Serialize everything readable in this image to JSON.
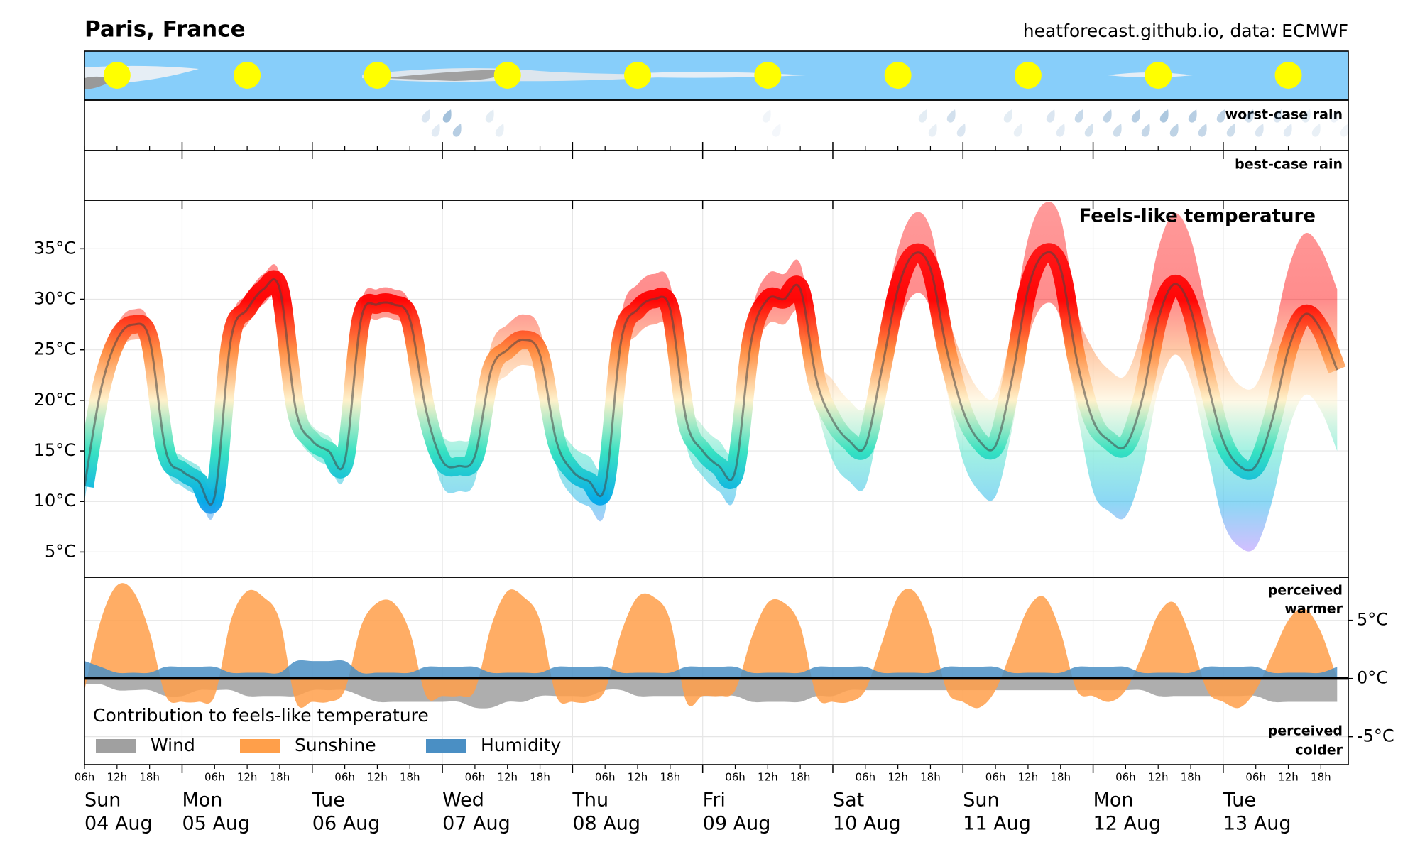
{
  "chart_data": {
    "type": "area",
    "title": "Paris, France",
    "source": "heatforecast.github.io, data: ECMWF",
    "worst_rain_label": "worst-case rain",
    "best_rain_label": "best-case rain",
    "days": [
      {
        "weekday": "Sun",
        "date": "04 Aug"
      },
      {
        "weekday": "Mon",
        "date": "05 Aug"
      },
      {
        "weekday": "Tue",
        "date": "06 Aug"
      },
      {
        "weekday": "Wed",
        "date": "07 Aug"
      },
      {
        "weekday": "Thu",
        "date": "08 Aug"
      },
      {
        "weekday": "Fri",
        "date": "09 Aug"
      },
      {
        "weekday": "Sat",
        "date": "10 Aug"
      },
      {
        "weekday": "Sun",
        "date": "11 Aug"
      },
      {
        "weekday": "Mon",
        "date": "12 Aug"
      },
      {
        "weekday": "Tue",
        "date": "13 Aug"
      }
    ],
    "hour_ticks": [
      "06h",
      "12h",
      "18h"
    ],
    "temperature": {
      "title": "Feels-like temperature",
      "ylim": [
        2.5,
        39.8
      ],
      "yticks": [
        {
          "value": 5,
          "label": "5°C"
        },
        {
          "value": 10,
          "label": "10°C"
        },
        {
          "value": 15,
          "label": "15°C"
        },
        {
          "value": 20,
          "label": "20°C"
        },
        {
          "value": 25,
          "label": "25°C"
        },
        {
          "value": 30,
          "label": "30°C"
        },
        {
          "value": 35,
          "label": "35°C"
        }
      ],
      "grid": true,
      "values": [
        null,
        null,
        11.5,
        21,
        26,
        27.5,
        26,
        15,
        13,
        12,
        10.5,
        26,
        29,
        31,
        31,
        19,
        16,
        15,
        14,
        28,
        29.5,
        29.5,
        28,
        19,
        14,
        13.5,
        14.5,
        23,
        25,
        26,
        24.5,
        16,
        13,
        12,
        11.5,
        26,
        29,
        30,
        29,
        18,
        15,
        13.5,
        13,
        26,
        30,
        30,
        31,
        22,
        18,
        16,
        15.5,
        23,
        31,
        34.5,
        33,
        25,
        19,
        16,
        15.5,
        22,
        31,
        34.5,
        33,
        24,
        18,
        16,
        15.5,
        20,
        28,
        31.5,
        29,
        22,
        16,
        13.5,
        13.5,
        18,
        25,
        28.5,
        27,
        23
      ],
      "low": [
        null,
        null,
        10,
        19.5,
        24.5,
        26,
        24.5,
        13.5,
        11.5,
        10.5,
        9,
        24.5,
        27.5,
        29.5,
        29.5,
        17.5,
        14.5,
        13.5,
        12.5,
        26.5,
        28,
        28,
        26.5,
        17.5,
        11.5,
        11,
        12,
        20.5,
        22.5,
        23.5,
        22,
        13.5,
        10.5,
        9.5,
        9,
        23.5,
        26.5,
        27.5,
        26.5,
        15.5,
        12.5,
        11,
        10.5,
        23.5,
        27.5,
        27.5,
        28.5,
        19.5,
        14,
        12,
        11.5,
        19,
        27,
        30.5,
        29,
        21,
        14,
        11,
        10.5,
        17,
        26,
        29.5,
        28,
        19,
        11,
        9,
        8.5,
        13,
        21,
        24.5,
        22,
        15,
        8,
        5.5,
        5.5,
        10,
        17,
        20.5,
        19,
        15
      ],
      "high": [
        null,
        null,
        13,
        22.5,
        27.5,
        29,
        27.5,
        16.5,
        14.5,
        13.5,
        12,
        27.5,
        30.5,
        32.5,
        32.5,
        20.5,
        17.5,
        16.5,
        15.5,
        29.5,
        31,
        31,
        29.5,
        20.5,
        16.5,
        16,
        17,
        25.5,
        27.5,
        28.5,
        27,
        18.5,
        15.5,
        14.5,
        14,
        28.5,
        31.5,
        32.5,
        31.5,
        20.5,
        17.5,
        16,
        15.5,
        28.5,
        32.5,
        32.5,
        33.5,
        24.5,
        22,
        20,
        19.5,
        27,
        35,
        38.5,
        37,
        29,
        24,
        21,
        20.5,
        27,
        36,
        39.5,
        38,
        29,
        25,
        23,
        22.5,
        27,
        35,
        38.5,
        36,
        29,
        24,
        21.5,
        21.5,
        26,
        33,
        36.5,
        35,
        31
      ]
    },
    "contribution": {
      "legend_title": "Contribution to feels-like temperature",
      "warmer_label": [
        "perceived",
        "warmer"
      ],
      "colder_label": [
        "perceived",
        "colder"
      ],
      "ylim": [
        -7.4,
        8.7
      ],
      "yticks": [
        {
          "value": -5,
          "label": "-5°C"
        },
        {
          "value": 0,
          "label": "0°C"
        },
        {
          "value": 5,
          "label": "5°C"
        }
      ],
      "series": [
        {
          "name": "Wind",
          "color": "#a0a0a0",
          "values": [
            null,
            null,
            -0.5,
            -0.5,
            -1,
            -1,
            -1,
            -1.5,
            -1.5,
            -1,
            -1,
            -1,
            -1.5,
            -1.5,
            -1.5,
            -1.5,
            -1,
            -1,
            -1,
            -1.5,
            -2,
            -2,
            -2,
            -2,
            -2,
            -2,
            -2.5,
            -2.5,
            -2,
            -2,
            -1.5,
            -1.5,
            -1.5,
            -1.5,
            -1,
            -1,
            -1.5,
            -1.5,
            -1.5,
            -1.5,
            -1.5,
            -1.5,
            -1.5,
            -2,
            -2,
            -2,
            -2,
            -1.5,
            -1.5,
            -1,
            -1,
            -1,
            -1,
            -1,
            -1,
            -1,
            -1,
            -1,
            -1,
            -1,
            -1,
            -1,
            -1,
            -1,
            -1,
            -1,
            -1,
            -1,
            -1.5,
            -1.5,
            -1.5,
            -1.5,
            -1.5,
            -1.5,
            -1.5,
            -2,
            -2,
            -2,
            -2,
            -2
          ]
        },
        {
          "name": "Sunshine",
          "color": "#ff9f4a",
          "values": [
            null,
            null,
            -1,
            5,
            8,
            7.5,
            4,
            -1.5,
            -2,
            -2,
            -1.5,
            5,
            7.5,
            7,
            5,
            -2,
            -2,
            -2,
            -1,
            4.5,
            6.5,
            6.5,
            4,
            -1.5,
            -1.5,
            -1.5,
            -1,
            4.5,
            7.5,
            7,
            5,
            -1.5,
            -2,
            -2,
            -1,
            4,
            7,
            7,
            5,
            -2,
            -1.5,
            -1.5,
            -1,
            3.5,
            6.5,
            6.5,
            4.5,
            -1.5,
            -2,
            -2,
            -1,
            3,
            7,
            7.5,
            4.5,
            -1,
            -2,
            -2.5,
            -1,
            2.5,
            6,
            7,
            4,
            -1,
            -1.5,
            -2,
            -1,
            2,
            5.5,
            6.5,
            3.5,
            -1,
            -2,
            -2.5,
            -1,
            2,
            5,
            6,
            4,
            0
          ]
        },
        {
          "name": "Humidity",
          "color": "#4a8fc4",
          "values": [
            null,
            null,
            1.5,
            1,
            0.5,
            0.5,
            0.5,
            1,
            1,
            1,
            1,
            0.5,
            0.5,
            0.5,
            0.5,
            1.5,
            1.5,
            1.5,
            1.5,
            0.5,
            0.5,
            0.5,
            0.5,
            1,
            1,
            1,
            1,
            0.5,
            0.5,
            0.5,
            0.5,
            1,
            1,
            1,
            1,
            0.5,
            0.5,
            0.5,
            0.5,
            1,
            1,
            1,
            1,
            0.5,
            0.5,
            0.5,
            0.5,
            1,
            1,
            1,
            1,
            0.5,
            0.5,
            0.5,
            0.5,
            1,
            1,
            1,
            1,
            0.5,
            0.5,
            0.5,
            0.5,
            1,
            1,
            1,
            1,
            0.5,
            0.5,
            0.5,
            0.5,
            1,
            1,
            1,
            1,
            0.5,
            0.5,
            0.5,
            0.5,
            1
          ]
        }
      ]
    }
  }
}
